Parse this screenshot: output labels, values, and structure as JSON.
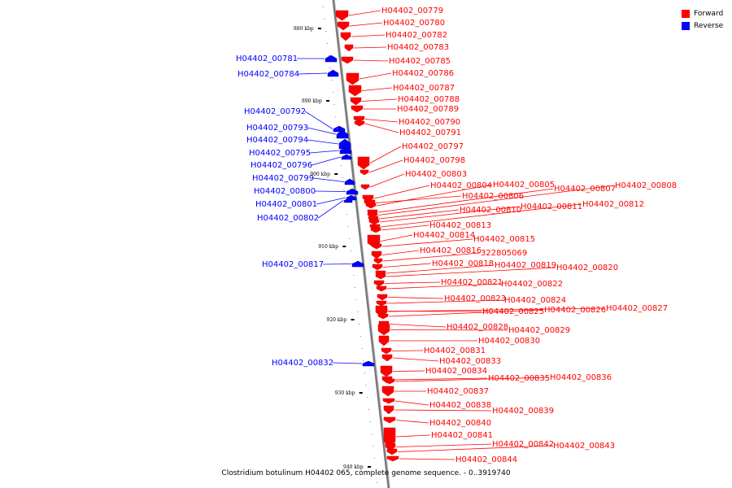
{
  "caption": "Clostridium botulinum H04402 065, complete genome sequence. - 0..3919740",
  "legend": [
    {
      "label": "Forward",
      "color": "#ff0000"
    },
    {
      "label": "Reverse",
      "color": "#0000ff"
    }
  ],
  "colors": {
    "forward": "#ff0000",
    "forward_dark": "#cc0000",
    "reverse": "#0000ff",
    "reverse_dark": "#0000a0",
    "axis": "#808080"
  },
  "ticks": [
    "880 kbp",
    "890 kbp",
    "900 kbp",
    "910 kbp",
    "920 kbp",
    "930 kbp",
    "940 kbp"
  ],
  "genes": [
    {
      "label": "H04402_00779",
      "strand": "forward"
    },
    {
      "label": "H04402_00780",
      "strand": "forward"
    },
    {
      "label": "H04402_00782",
      "strand": "forward"
    },
    {
      "label": "H04402_00783",
      "strand": "forward"
    },
    {
      "label": "H04402_00781",
      "strand": "reverse"
    },
    {
      "label": "H04402_00785",
      "strand": "forward"
    },
    {
      "label": "H04402_00784",
      "strand": "reverse"
    },
    {
      "label": "H04402_00786",
      "strand": "forward"
    },
    {
      "label": "H04402_00787",
      "strand": "forward"
    },
    {
      "label": "H04402_00788",
      "strand": "forward"
    },
    {
      "label": "H04402_00789",
      "strand": "forward"
    },
    {
      "label": "H04402_00792",
      "strand": "reverse"
    },
    {
      "label": "H04402_00790",
      "strand": "forward"
    },
    {
      "label": "H04402_00793",
      "strand": "reverse"
    },
    {
      "label": "H04402_00791",
      "strand": "forward"
    },
    {
      "label": "H04402_00794",
      "strand": "reverse"
    },
    {
      "label": "H04402_00797",
      "strand": "forward"
    },
    {
      "label": "H04402_00795",
      "strand": "reverse"
    },
    {
      "label": "H04402_00798",
      "strand": "forward"
    },
    {
      "label": "H04402_00796",
      "strand": "reverse"
    },
    {
      "label": "H04402_00803",
      "strand": "forward"
    },
    {
      "label": "H04402_00799",
      "strand": "reverse"
    },
    {
      "label": "H04402_00804",
      "strand": "forward"
    },
    {
      "label": "H04402_00805",
      "strand": "forward"
    },
    {
      "label": "H04402_00807",
      "strand": "forward"
    },
    {
      "label": "H04402_00808",
      "strand": "forward"
    },
    {
      "label": "H04402_00800",
      "strand": "reverse"
    },
    {
      "label": "H04402_00806",
      "strand": "forward"
    },
    {
      "label": "H04402_00801",
      "strand": "reverse"
    },
    {
      "label": "H04402_00812",
      "strand": "forward"
    },
    {
      "label": "H04402_00810",
      "strand": "forward"
    },
    {
      "label": "H04402_00811",
      "strand": "forward"
    },
    {
      "label": "H04402_00802",
      "strand": "reverse"
    },
    {
      "label": "H04402_00813",
      "strand": "forward"
    },
    {
      "label": "H04402_00814",
      "strand": "forward"
    },
    {
      "label": "H04402_00815",
      "strand": "forward"
    },
    {
      "label": "H04402_00816",
      "strand": "forward"
    },
    {
      "label": "322805069",
      "strand": "forward"
    },
    {
      "label": "H04402_00817",
      "strand": "reverse"
    },
    {
      "label": "H04402_00818",
      "strand": "forward"
    },
    {
      "label": "H04402_00819",
      "strand": "forward"
    },
    {
      "label": "H04402_00820",
      "strand": "forward"
    },
    {
      "label": "H04402_00821",
      "strand": "forward"
    },
    {
      "label": "H04402_00822",
      "strand": "forward"
    },
    {
      "label": "H04402_00823",
      "strand": "forward"
    },
    {
      "label": "H04402_00824",
      "strand": "forward"
    },
    {
      "label": "H04402_00827",
      "strand": "forward"
    },
    {
      "label": "H04402_00825",
      "strand": "forward"
    },
    {
      "label": "H04402_00826",
      "strand": "forward"
    },
    {
      "label": "H04402_00828",
      "strand": "forward"
    },
    {
      "label": "H04402_00829",
      "strand": "forward"
    },
    {
      "label": "H04402_00830",
      "strand": "forward"
    },
    {
      "label": "H04402_00831",
      "strand": "forward"
    },
    {
      "label": "H04402_00833",
      "strand": "forward"
    },
    {
      "label": "H04402_00832",
      "strand": "reverse"
    },
    {
      "label": "H04402_00834",
      "strand": "forward"
    },
    {
      "label": "H04402_00835",
      "strand": "forward"
    },
    {
      "label": "H04402_00836",
      "strand": "forward"
    },
    {
      "label": "H04402_00837",
      "strand": "forward"
    },
    {
      "label": "H04402_00838",
      "strand": "forward"
    },
    {
      "label": "H04402_00839",
      "strand": "forward"
    },
    {
      "label": "H04402_00840",
      "strand": "forward"
    },
    {
      "label": "H04402_00841",
      "strand": "forward"
    },
    {
      "label": "H04402_00842",
      "strand": "forward"
    },
    {
      "label": "H04402_00843",
      "strand": "forward"
    },
    {
      "label": "H04402_00844",
      "strand": "forward"
    }
  ]
}
